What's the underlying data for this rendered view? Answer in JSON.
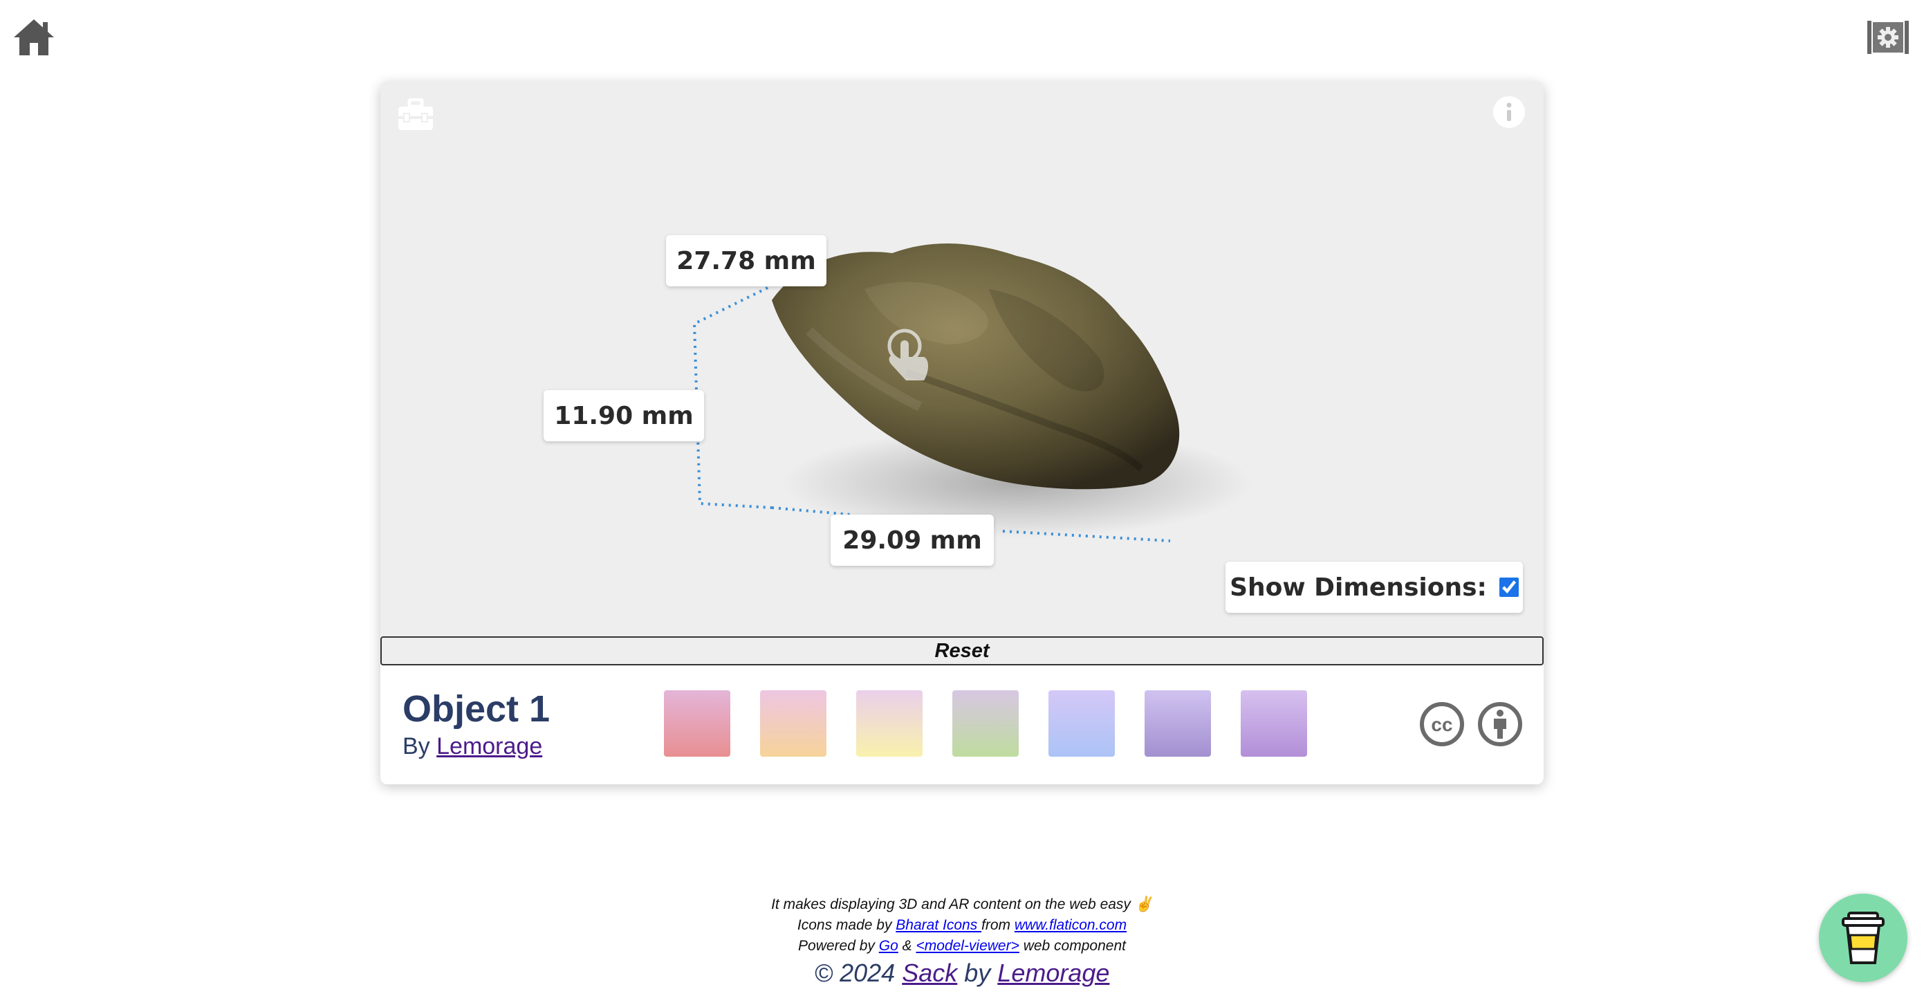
{
  "icons": {
    "home": "home-icon",
    "settings": "settings-icon",
    "toolbox": "toolbox-icon",
    "info": "info-icon",
    "hand": "hand-pointer-icon",
    "cc": "creative-commons-icon",
    "person": "attribution-icon",
    "coffee": "coffee-cup-icon"
  },
  "viewer": {
    "dimensions": {
      "top": "27.78 mm",
      "left": "11.90 mm",
      "bottom": "29.09 mm"
    },
    "show_dimensions_label": "Show Dimensions:",
    "show_dimensions_checked": true,
    "reset_label": "Reset"
  },
  "object": {
    "title": "Object 1",
    "by_prefix": "By ",
    "author": "Lemorage"
  },
  "swatches": [
    {
      "top": "#e4b5d8",
      "bottom": "#e88f92"
    },
    {
      "top": "#eec6e2",
      "bottom": "#f6d39a"
    },
    {
      "top": "#eacfea",
      "bottom": "#f9f1ad"
    },
    {
      "top": "#d7c7e2",
      "bottom": "#bfdc9f"
    },
    {
      "top": "#d4c8f7",
      "bottom": "#acc3f6"
    },
    {
      "top": "#d0c2f0",
      "bottom": "#a290d0"
    },
    {
      "top": "#d6c0ef",
      "bottom": "#b28fd8"
    }
  ],
  "colors": {
    "accent_blue": "#3a8fd8",
    "title_navy": "#2b3d66",
    "link_purple": "#4b1b8a",
    "coffee_green": "#7fdcaa"
  },
  "footer": {
    "line1": "It makes displaying 3D and AR content on the web easy ✌️",
    "line2_prefix": "Icons made by ",
    "line2_link1": "Bharat Icons ",
    "line2_mid": "from ",
    "line2_link2": "www.flaticon.com",
    "line3_prefix": "Powered by ",
    "line3_link1": "Go",
    "line3_mid": " & ",
    "line3_link2": "<model-viewer>",
    "line3_suffix": " web component",
    "line4_prefix": "© 2024 ",
    "line4_link1": "Sack",
    "line4_mid": " by ",
    "line4_link2": "Lemorage"
  }
}
